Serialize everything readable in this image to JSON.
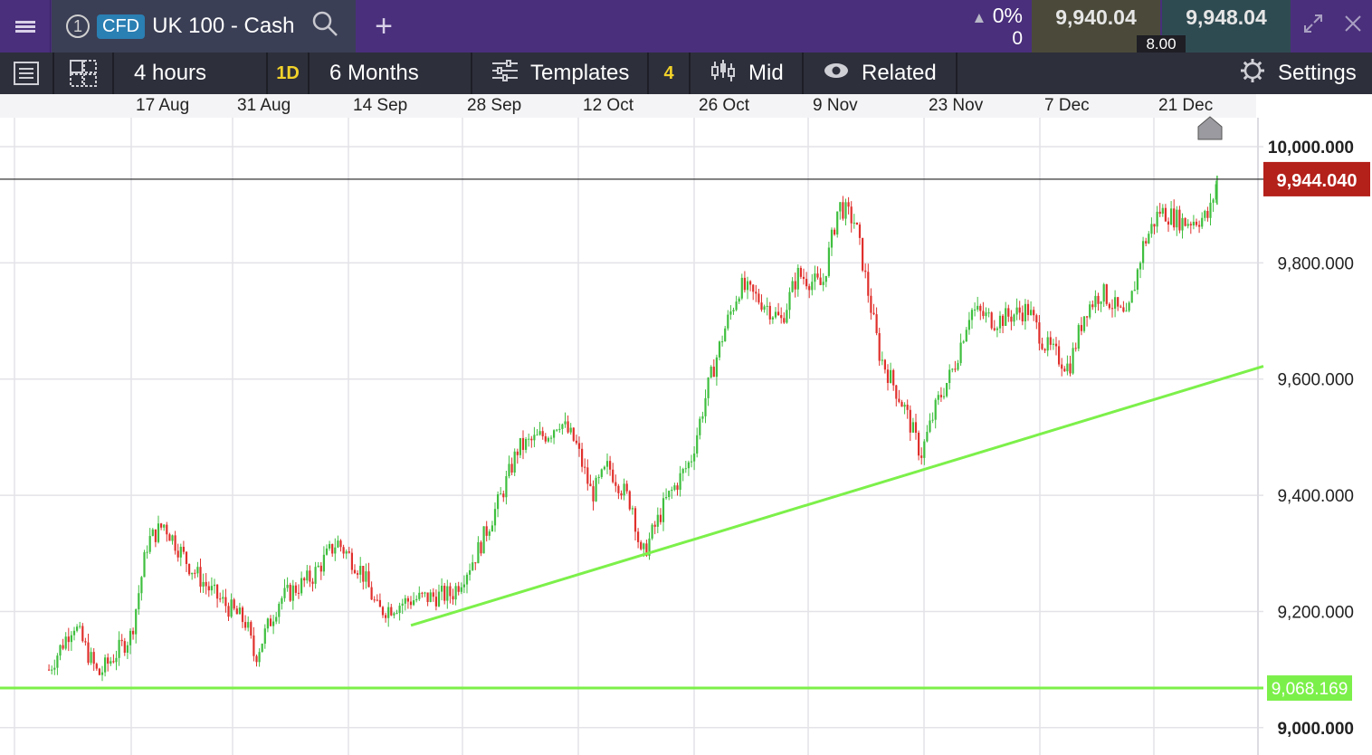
{
  "header": {
    "tab_number": "1",
    "tab_badge": "CFD",
    "instrument": "UK 100 - Cash",
    "add_tab": "+",
    "change_pct": "0%",
    "change_value": "0",
    "sell_price": "9,940.04",
    "buy_price": "9,948.04",
    "spread": "8.00"
  },
  "toolbar": {
    "interval": "4 hours",
    "quick_period": "1D",
    "range": "6 Months",
    "templates": "Templates",
    "template_count": "4",
    "price_type": "Mid",
    "related": "Related",
    "settings": "Settings"
  },
  "chart_data": {
    "type": "candlestick",
    "x_tick_labels": [
      "17 Aug",
      "31 Aug",
      "14 Sep",
      "28 Sep",
      "12 Oct",
      "26 Oct",
      "9 Nov",
      "23 Nov",
      "7 Dec",
      "21 Dec"
    ],
    "y_tick_labels": [
      "10,000.000",
      "9,800.000",
      "9,600.000",
      "9,400.000",
      "9,200.000",
      "9,000.000"
    ],
    "ylim": [
      8960,
      10050
    ],
    "current_price_label": "9,944.040",
    "current_price": 9944.04,
    "horizontal_line_label": "9,068.169",
    "horizontal_line_value": 9068.169,
    "trendline": {
      "from": [
        "20 Sep",
        9176
      ],
      "to": [
        "end",
        9622
      ]
    },
    "anchor_points": [
      [
        "7 Aug",
        9100
      ],
      [
        "10 Aug",
        9180
      ],
      [
        "13 Aug",
        9090
      ],
      [
        "17 Aug",
        9160
      ],
      [
        "19 Aug",
        9320
      ],
      [
        "21 Aug",
        9350
      ],
      [
        "24 Aug",
        9280
      ],
      [
        "27 Aug",
        9230
      ],
      [
        "31 Aug",
        9180
      ],
      [
        "1 Sep",
        9120
      ],
      [
        "4 Sep",
        9220
      ],
      [
        "8 Sep",
        9260
      ],
      [
        "11 Sep",
        9320
      ],
      [
        "14 Sep",
        9270
      ],
      [
        "16 Sep",
        9200
      ],
      [
        "20 Sep",
        9220
      ],
      [
        "25 Sep",
        9230
      ],
      [
        "28 Sep",
        9300
      ],
      [
        "1 Oct",
        9400
      ],
      [
        "3 Oct",
        9480
      ],
      [
        "7 Oct",
        9510
      ],
      [
        "8 Oct",
        9530
      ],
      [
        "10 Oct",
        9490
      ],
      [
        "12 Oct",
        9400
      ],
      [
        "14 Oct",
        9450
      ],
      [
        "17 Oct",
        9380
      ],
      [
        "18 Oct",
        9290
      ],
      [
        "21 Oct",
        9390
      ],
      [
        "24 Oct",
        9460
      ],
      [
        "26 Oct",
        9580
      ],
      [
        "28 Oct",
        9680
      ],
      [
        "30 Oct",
        9760
      ],
      [
        "2 Nov",
        9730
      ],
      [
        "4 Nov",
        9700
      ],
      [
        "6 Nov",
        9780
      ],
      [
        "9 Nov",
        9760
      ],
      [
        "11 Nov",
        9900
      ],
      [
        "13 Nov",
        9870
      ],
      [
        "16 Nov",
        9640
      ],
      [
        "19 Nov",
        9550
      ],
      [
        "21 Nov",
        9470
      ],
      [
        "23 Nov",
        9560
      ],
      [
        "25 Nov",
        9620
      ],
      [
        "27 Nov",
        9720
      ],
      [
        "30 Nov",
        9700
      ],
      [
        "4 Dec",
        9720
      ],
      [
        "6 Dec",
        9660
      ],
      [
        "9 Dec",
        9620
      ],
      [
        "11 Dec",
        9720
      ],
      [
        "13 Dec",
        9750
      ],
      [
        "16 Dec",
        9700
      ],
      [
        "18 Dec",
        9830
      ],
      [
        "20 Dec",
        9890
      ],
      [
        "23 Dec",
        9870
      ],
      [
        "26 Dec",
        9880
      ],
      [
        "27 Dec",
        9944
      ]
    ]
  },
  "colors": {
    "topbar": "#4a2f7c",
    "toolbar": "#2d2f3b",
    "candle_up": "#3fbf3f",
    "candle_down": "#e0302c",
    "trendline": "#7cf04a",
    "current_price_box": "#b4201a"
  },
  "icons": [
    "hamburger-menu-icon",
    "search-icon",
    "up-triangle-icon",
    "expand-icon",
    "close-icon",
    "list-icon",
    "layout-icon",
    "sliders-icon",
    "candlestick-icon",
    "eye-icon",
    "gear-icon",
    "home-marker-icon"
  ]
}
